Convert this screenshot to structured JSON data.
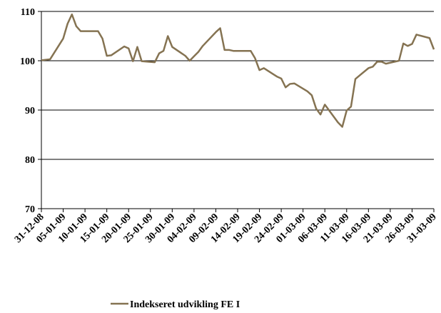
{
  "chart_data": {
    "type": "line",
    "x": [
      "31-12-08",
      "02-01-09",
      "05-01-09",
      "06-01-09",
      "07-01-09",
      "08-01-09",
      "09-01-09",
      "12-01-09",
      "13-01-09",
      "14-01-09",
      "15-01-09",
      "16-01-09",
      "19-01-09",
      "20-01-09",
      "21-01-09",
      "22-01-09",
      "23-01-09",
      "26-01-09",
      "27-01-09",
      "28-01-09",
      "29-01-09",
      "30-01-09",
      "02-02-09",
      "03-02-09",
      "04-02-09",
      "05-02-09",
      "06-02-09",
      "09-02-09",
      "10-02-09",
      "11-02-09",
      "12-02-09",
      "13-02-09",
      "16-02-09",
      "17-02-09",
      "18-02-09",
      "19-02-09",
      "20-02-09",
      "23-02-09",
      "24-02-09",
      "25-02-09",
      "26-02-09",
      "27-02-09",
      "02-03-09",
      "03-03-09",
      "04-03-09",
      "05-03-09",
      "06-03-09",
      "09-03-09",
      "10-03-09",
      "11-03-09",
      "12-03-09",
      "13-03-09",
      "16-03-09",
      "17-03-09",
      "18-03-09",
      "19-03-09",
      "20-03-09",
      "23-03-09",
      "24-03-09",
      "25-03-09",
      "26-03-09",
      "27-03-09",
      "30-03-09",
      "31-03-09"
    ],
    "series": [
      {
        "name": "Indekseret udvikling FE I",
        "color": "#857352",
        "values": [
          100.1,
          100.3,
          104.5,
          107.5,
          109.4,
          107,
          106,
          106,
          106,
          104.5,
          101,
          101.1,
          102.9,
          102.5,
          99.9,
          102.8,
          99.9,
          99.7,
          101.5,
          102,
          105,
          102.8,
          101,
          100,
          100.9,
          101.8,
          103,
          105.8,
          106.6,
          102.2,
          102.2,
          102,
          102,
          102,
          100.5,
          98.1,
          98.5,
          96.8,
          96.4,
          94.6,
          95.3,
          95.4,
          93.8,
          93,
          90.3,
          89.1,
          91.1,
          87.5,
          86.6,
          89.9,
          90.7,
          96.3,
          98.5,
          98.8,
          99.8,
          99.8,
          99.4,
          100,
          103.5,
          103,
          103.4,
          105.3,
          104.6,
          102.3
        ]
      }
    ],
    "xlim": [
      "31-12-08",
      "31-03-09"
    ],
    "xticks": [
      "31-12-08",
      "05-01-09",
      "10-01-09",
      "15-01-09",
      "20-01-09",
      "25-01-09",
      "30-01-09",
      "04-02-09",
      "09-02-09",
      "14-02-09",
      "19-02-09",
      "24-02-09",
      "01-03-09",
      "06-03-09",
      "11-03-09",
      "16-03-09",
      "21-03-09",
      "26-03-09",
      "31-03-09"
    ],
    "ylim": [
      70,
      110
    ],
    "yticks": [
      70,
      80,
      90,
      100,
      110
    ],
    "grid": true,
    "legend": "bottom"
  }
}
